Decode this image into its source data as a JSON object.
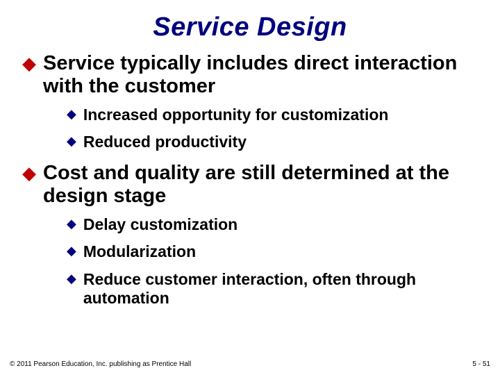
{
  "title": "Service Design",
  "bullets": {
    "b1": "Service typically includes direct interaction with the customer",
    "b1a": "Increased opportunity for customization",
    "b1b": "Reduced productivity",
    "b2": "Cost and quality are still determined at the design stage",
    "b2a": "Delay customization",
    "b2b": "Modularization",
    "b2c": "Reduce customer interaction, often through automation"
  },
  "footer": {
    "copyright": "© 2011 Pearson Education, Inc. publishing as Prentice Hall",
    "page": "5 - 51"
  },
  "colors": {
    "title": "#000080",
    "bullet_l1": "#c00000",
    "bullet_l2": "#000080",
    "text": "#000000",
    "background": "#ffffff"
  },
  "fonts": {
    "title_size": 38,
    "l1_size": 29,
    "l2_size": 23,
    "footer_size": 10
  }
}
